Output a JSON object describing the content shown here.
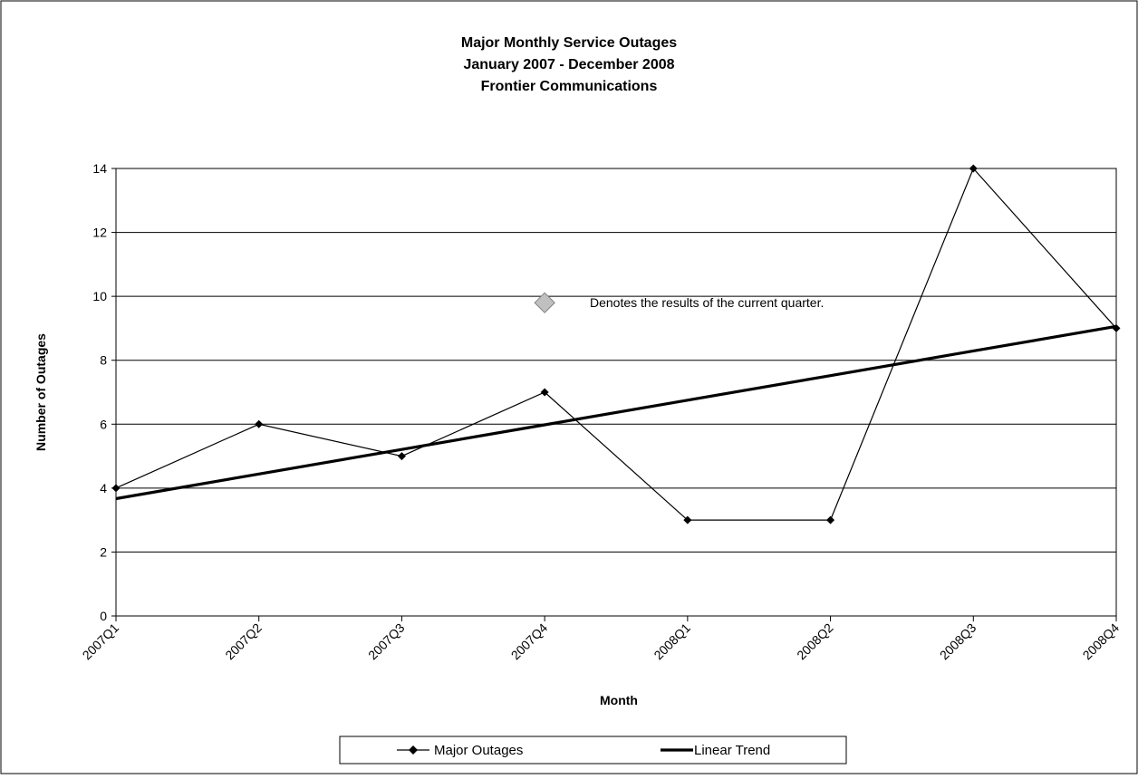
{
  "chart_data": {
    "type": "line",
    "title": [
      "Major Monthly Service Outages",
      "January 2007 - December 2008",
      "Frontier Communications"
    ],
    "xlabel": "Month",
    "ylabel": "Number of Outages",
    "categories": [
      "2007Q1",
      "2007Q2",
      "2007Q3",
      "2007Q4",
      "2008Q1",
      "2008Q2",
      "2008Q3",
      "2008Q4"
    ],
    "series": [
      {
        "name": "Major Outages",
        "values": [
          4,
          6,
          5,
          7,
          3,
          3,
          14,
          9
        ],
        "color": "#000000",
        "marker": "diamond"
      },
      {
        "name": "Linear Trend",
        "values": [
          3.67,
          4.44,
          5.21,
          5.98,
          6.75,
          7.52,
          8.29,
          9.06
        ],
        "color": "#000000",
        "style": "bold-line"
      }
    ],
    "ylim": [
      0,
      14
    ],
    "yticks": [
      0,
      2,
      4,
      6,
      8,
      10,
      12,
      14
    ],
    "grid": true,
    "legend": "bottom",
    "annotation": {
      "text": "Denotes the results of the current quarter.",
      "marker_color": "#c0c0c0",
      "anchor_category": "2007Q4",
      "anchor_value": 9.8
    }
  }
}
